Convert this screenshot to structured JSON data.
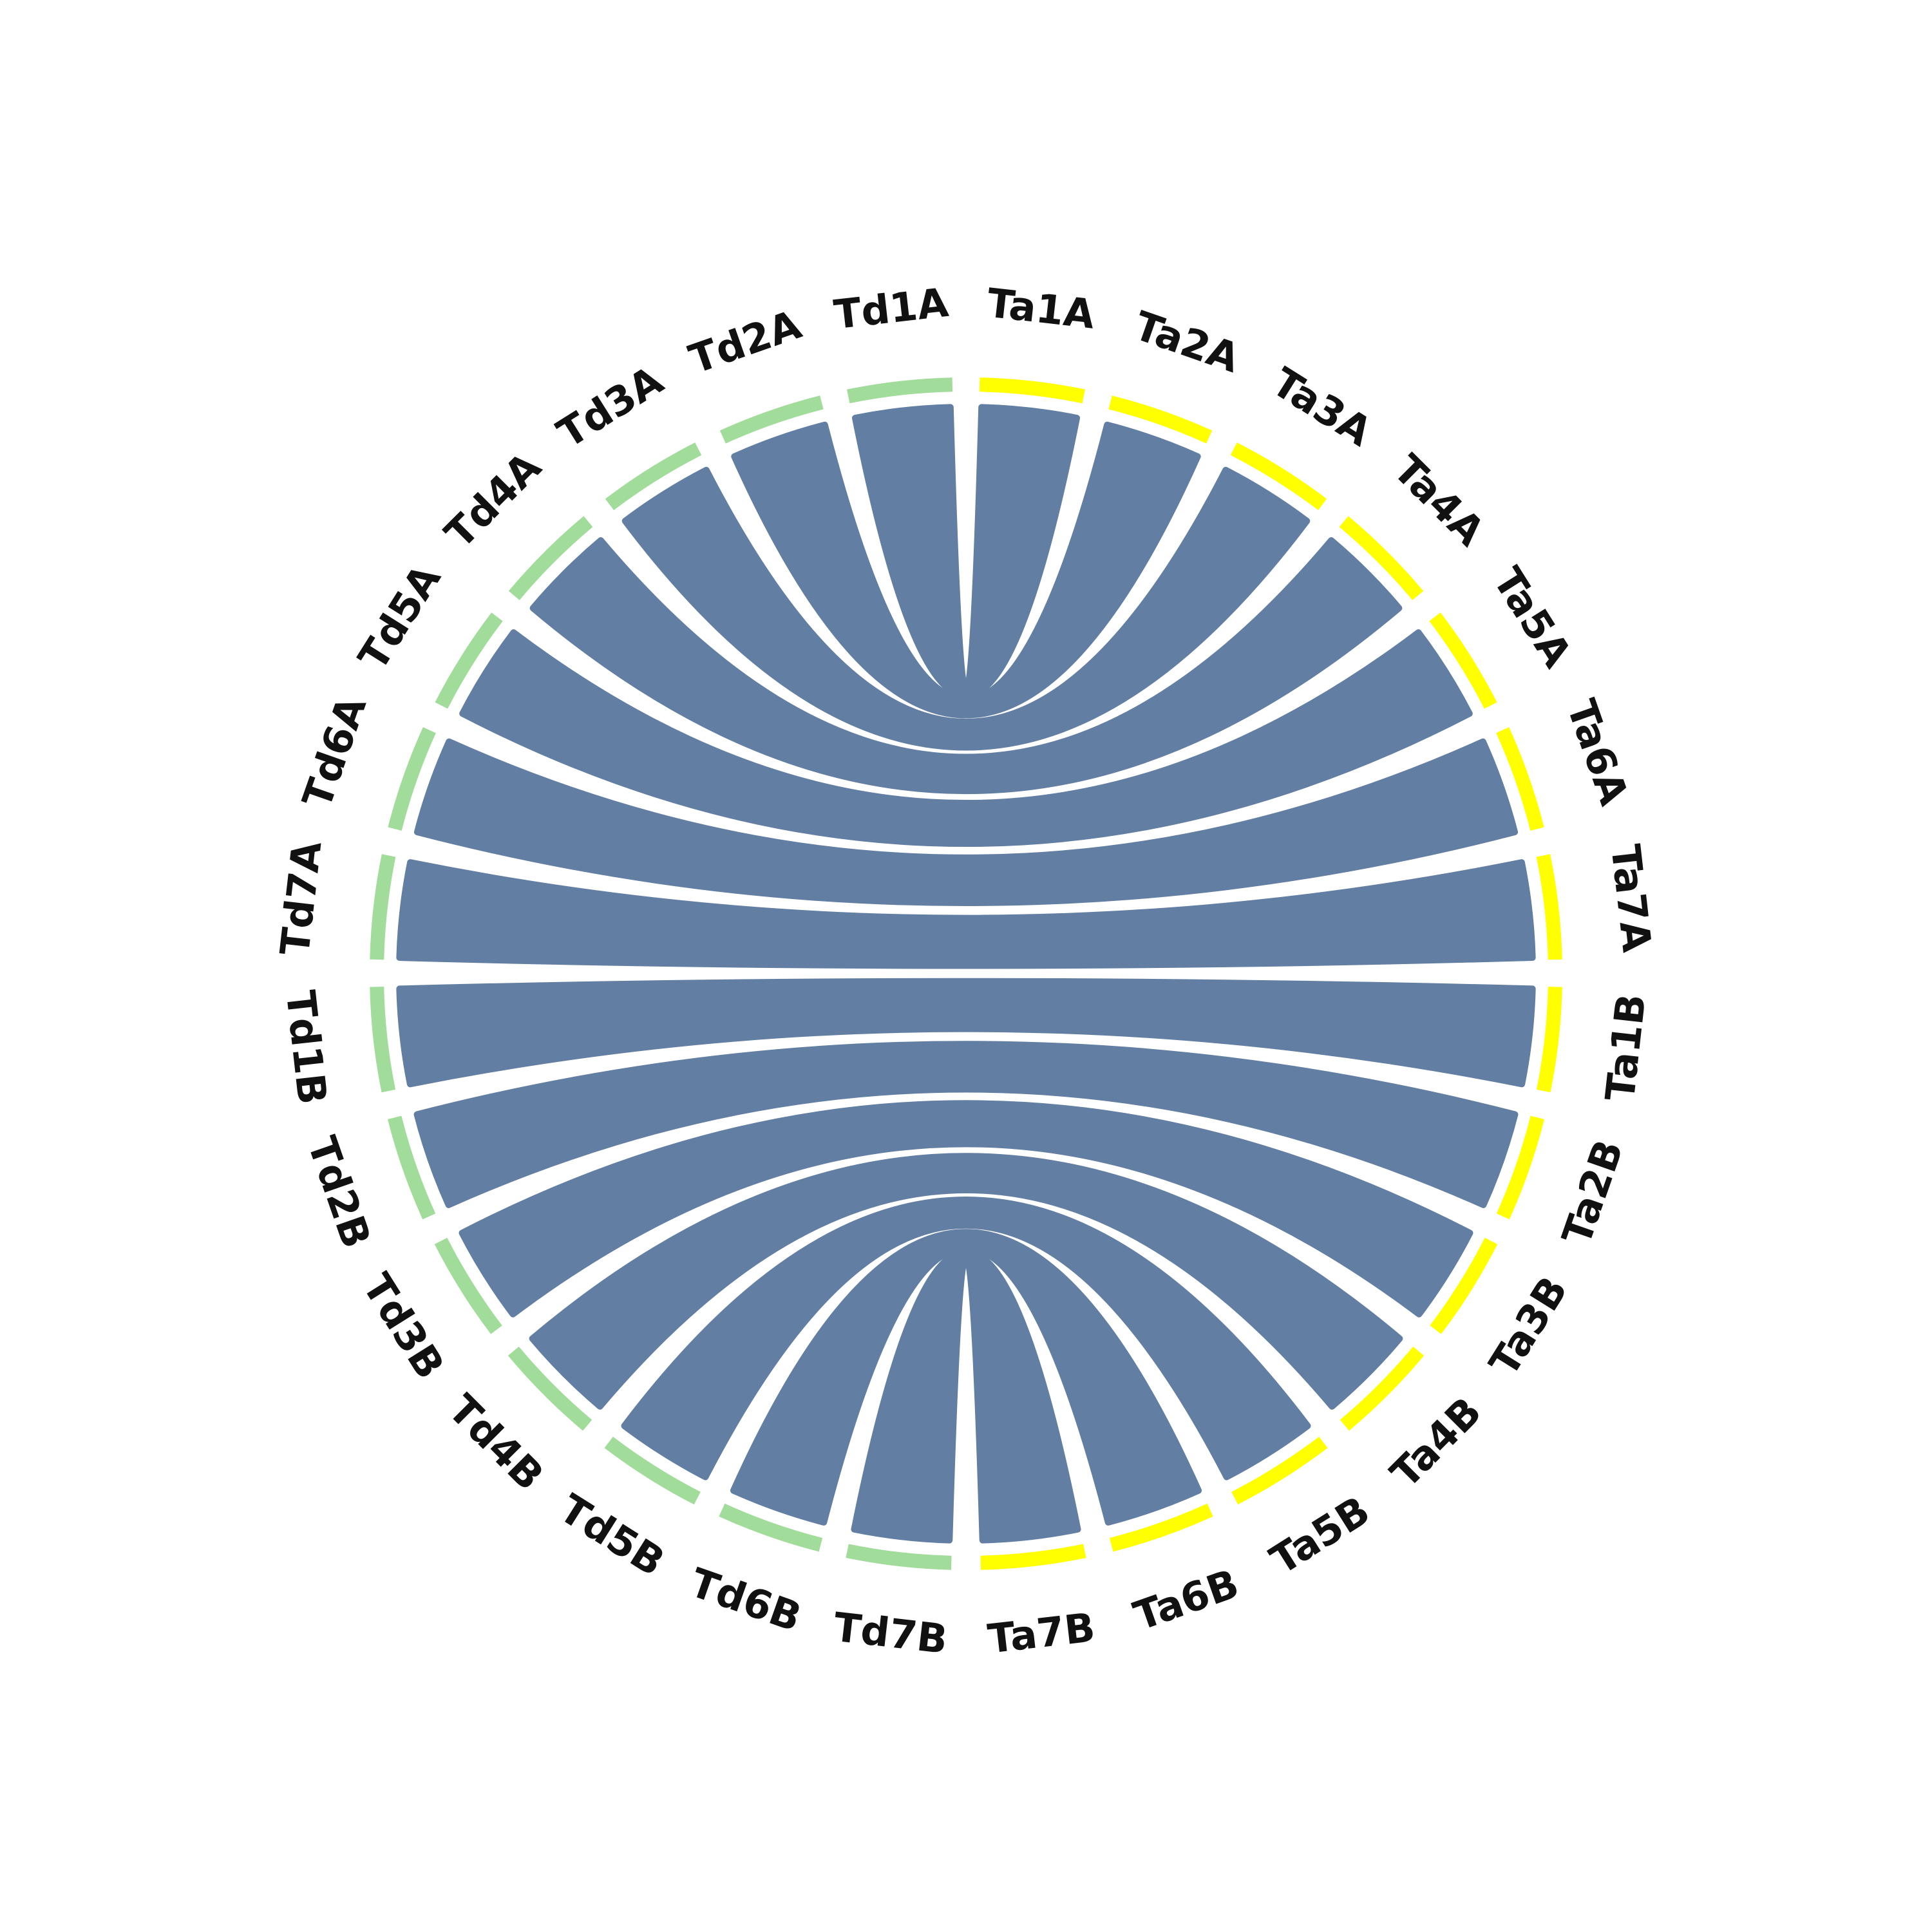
{
  "colors": {
    "background": "#ffffff",
    "td_segment": "#a1dc9a",
    "ta_segment": "#ffff00",
    "link": "#627fa3",
    "label": "#111111"
  },
  "segments": [
    {
      "id": "Td1A",
      "label": "Td1A",
      "group": "td"
    },
    {
      "id": "Td2A",
      "label": "Td2A",
      "group": "td"
    },
    {
      "id": "Td3A",
      "label": "Td3A",
      "group": "td"
    },
    {
      "id": "Td4A",
      "label": "Td4A",
      "group": "td"
    },
    {
      "id": "Td5A",
      "label": "Td5A",
      "group": "td"
    },
    {
      "id": "Td6A",
      "label": "Td6A",
      "group": "td"
    },
    {
      "id": "Td7A",
      "label": "Td7A",
      "group": "td"
    },
    {
      "id": "Td1B",
      "label": "Td1B",
      "group": "td"
    },
    {
      "id": "Td2B",
      "label": "Td2B",
      "group": "td"
    },
    {
      "id": "Td3B",
      "label": "Td3B",
      "group": "td"
    },
    {
      "id": "Td4B",
      "label": "Td4B",
      "group": "td"
    },
    {
      "id": "Td5B",
      "label": "Td5B",
      "group": "td"
    },
    {
      "id": "Td6B",
      "label": "Td6B",
      "group": "td"
    },
    {
      "id": "Td7B",
      "label": "Td7B",
      "group": "td"
    },
    {
      "id": "Ta1A",
      "label": "Ta1A",
      "group": "ta"
    },
    {
      "id": "Ta2A",
      "label": "Ta2A",
      "group": "ta"
    },
    {
      "id": "Ta3A",
      "label": "Ta3A",
      "group": "ta"
    },
    {
      "id": "Ta4A",
      "label": "Ta4A",
      "group": "ta"
    },
    {
      "id": "Ta5A",
      "label": "Ta5A",
      "group": "ta"
    },
    {
      "id": "Ta6A",
      "label": "Ta6A",
      "group": "ta"
    },
    {
      "id": "Ta7A",
      "label": "Ta7A",
      "group": "ta"
    },
    {
      "id": "Ta1B",
      "label": "Ta1B",
      "group": "ta"
    },
    {
      "id": "Ta2B",
      "label": "Ta2B",
      "group": "ta"
    },
    {
      "id": "Ta3B",
      "label": "Ta3B",
      "group": "ta"
    },
    {
      "id": "Ta4B",
      "label": "Ta4B",
      "group": "ta"
    },
    {
      "id": "Ta5B",
      "label": "Ta5B",
      "group": "ta"
    },
    {
      "id": "Ta6B",
      "label": "Ta6B",
      "group": "ta"
    },
    {
      "id": "Ta7B",
      "label": "Ta7B",
      "group": "ta"
    }
  ],
  "links": [
    {
      "from": "Td1A",
      "to": "Ta1A"
    },
    {
      "from": "Td2A",
      "to": "Ta2A"
    },
    {
      "from": "Td3A",
      "to": "Ta3A"
    },
    {
      "from": "Td4A",
      "to": "Ta4A"
    },
    {
      "from": "Td5A",
      "to": "Ta5A"
    },
    {
      "from": "Td6A",
      "to": "Ta6A"
    },
    {
      "from": "Td7A",
      "to": "Ta7A"
    },
    {
      "from": "Td1B",
      "to": "Ta1B"
    },
    {
      "from": "Td2B",
      "to": "Ta2B"
    },
    {
      "from": "Td3B",
      "to": "Ta3B"
    },
    {
      "from": "Td4B",
      "to": "Ta4B"
    },
    {
      "from": "Td5B",
      "to": "Ta5B"
    },
    {
      "from": "Td6B",
      "to": "Ta6B"
    },
    {
      "from": "Td7B",
      "to": "Ta7B"
    }
  ]
}
